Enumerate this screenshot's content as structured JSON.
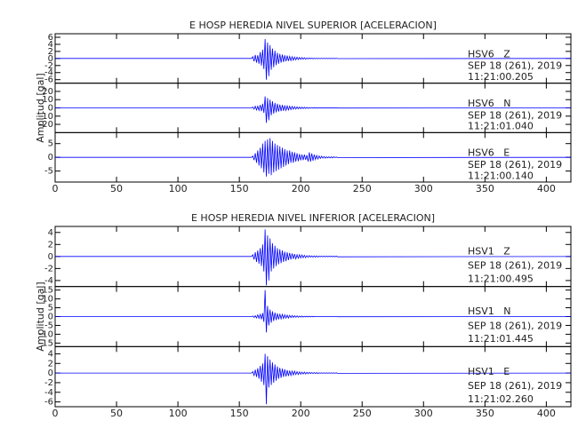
{
  "chart_data": [
    {
      "type": "line",
      "title": "E HOSP HEREDIA NIVEL SUPERIOR [ACELERACION]",
      "ylabel": "Amplitud [gal]",
      "xlim": [
        0,
        420
      ],
      "xticks": [
        0,
        50,
        100,
        150,
        200,
        250,
        300,
        350,
        400
      ],
      "x": [
        0,
        160,
        161,
        162,
        163,
        164,
        165,
        166,
        167,
        168,
        169,
        170,
        171,
        172,
        173,
        174,
        175,
        176,
        177,
        178,
        179,
        180,
        181,
        182,
        183,
        184,
        185,
        186,
        187,
        188,
        189,
        190,
        191,
        192,
        193,
        194,
        195,
        196,
        197,
        198,
        199,
        200,
        201,
        202,
        203,
        204,
        205,
        206,
        207,
        208,
        209,
        210,
        211,
        212,
        213,
        214,
        215,
        216,
        217,
        218,
        219,
        220,
        221,
        222,
        223,
        224,
        225,
        226,
        227,
        228,
        229,
        230,
        420
      ],
      "series": [
        {
          "name": "HSV6   Z",
          "date": "SEP 18 (261), 2019",
          "time": "11:21:00.205",
          "color": "#0000ff",
          "ylim": [
            -7,
            7
          ],
          "yticks": [
            6,
            4,
            2,
            0,
            -2,
            -4,
            -6
          ],
          "values": [
            0,
            0,
            0.5,
            -0.8,
            1,
            -1.2,
            0.9,
            -1.5,
            1.8,
            -2,
            2.5,
            -3,
            5.5,
            -6,
            4.5,
            -5,
            3.8,
            -3.2,
            2.8,
            -2.5,
            2.2,
            -1.9,
            1.6,
            -1.5,
            1.3,
            -1.2,
            1.1,
            -1,
            0.9,
            -0.8,
            0.8,
            -0.7,
            0.6,
            -0.6,
            0.5,
            -0.5,
            0.4,
            -0.4,
            0.35,
            -0.3,
            0.3,
            -0.25,
            0.25,
            -0.2,
            0.2,
            -0.2,
            0.15,
            -0.15,
            0.15,
            -0.1,
            0.1,
            -0.1,
            0.1,
            -0.1,
            0.08,
            -0.08,
            0.05,
            -0.05,
            0.05,
            -0.05,
            0.05,
            -0.05,
            0.05,
            -0.05,
            0.05,
            -0.05,
            0.05,
            -0.05,
            0.05,
            -0.05,
            0.05,
            -0.05,
            0
          ]
        },
        {
          "name": "HSV6   N",
          "date": "SEP 18 (261), 2019",
          "time": "11:21:01.040",
          "color": "#0000ff",
          "ylim": [
            -30,
            30
          ],
          "yticks": [
            20,
            10,
            0,
            -10,
            -20
          ],
          "values": [
            0,
            0,
            1,
            -1.5,
            2,
            -2.5,
            2,
            -3,
            3.5,
            -4,
            5,
            -6,
            14,
            -18,
            12,
            -15,
            10,
            -9,
            8,
            -7,
            6,
            -5.5,
            5,
            -4.5,
            4,
            -4,
            3.5,
            -3.5,
            3,
            -3,
            2.5,
            -2.5,
            2,
            -2,
            1.8,
            -1.6,
            1.5,
            -1.4,
            1.2,
            -1.1,
            1,
            -1,
            0.9,
            -0.8,
            0.8,
            -0.7,
            0.6,
            -0.6,
            0.5,
            -0.5,
            0.4,
            -0.4,
            0.4,
            -0.3,
            0.3,
            -0.3,
            0.3,
            -0.2,
            0.2,
            -0.2,
            0.2,
            -0.2,
            0.2,
            -0.2,
            0.2,
            -0.2,
            0.2,
            -0.2,
            0.2,
            -0.2,
            0.2,
            -0.2,
            0
          ]
        },
        {
          "name": "HSV6   E",
          "date": "SEP 18 (261), 2019",
          "time": "11:21:00.140",
          "color": "#0000ff",
          "ylim": [
            -9,
            9
          ],
          "yticks": [
            5,
            0,
            -5
          ],
          "values": [
            0,
            0,
            0.5,
            -1,
            1.5,
            -2,
            2.5,
            -3,
            3.5,
            -4,
            5,
            -5.5,
            6,
            -7,
            6.5,
            -6,
            7,
            -6.5,
            6,
            -5.5,
            5,
            -5,
            4.5,
            -4.5,
            4,
            -4,
            3.5,
            -3.5,
            3,
            -3,
            2.5,
            -2.5,
            2.5,
            -2,
            2,
            -2,
            1.8,
            -1.6,
            1.5,
            -1.4,
            1.2,
            -1.1,
            1,
            -1,
            1,
            -0.9,
            0.8,
            -1.5,
            1.8,
            -1.6,
            1.4,
            -1.2,
            1,
            -0.8,
            0.7,
            -0.6,
            0.5,
            -0.4,
            0.4,
            -0.3,
            0.3,
            -0.3,
            0.2,
            -0.2,
            0.2,
            -0.2,
            0.2,
            -0.2,
            0.2,
            -0.1,
            0.1,
            -0.1,
            0
          ]
        }
      ]
    },
    {
      "type": "line",
      "title": "E HOSP HEREDIA NIVEL INFERIOR [ACELERACION]",
      "ylabel": "Amplitud [gal]",
      "xlim": [
        0,
        420
      ],
      "xticks": [
        0,
        50,
        100,
        150,
        200,
        250,
        300,
        350,
        400
      ],
      "x": [
        0,
        160,
        161,
        162,
        163,
        164,
        165,
        166,
        167,
        168,
        169,
        170,
        171,
        172,
        173,
        174,
        175,
        176,
        177,
        178,
        179,
        180,
        181,
        182,
        183,
        184,
        185,
        186,
        187,
        188,
        189,
        190,
        191,
        192,
        193,
        194,
        195,
        196,
        197,
        198,
        199,
        200,
        201,
        202,
        203,
        204,
        205,
        206,
        207,
        208,
        209,
        210,
        211,
        212,
        213,
        214,
        215,
        216,
        217,
        218,
        219,
        220,
        221,
        222,
        223,
        224,
        225,
        226,
        227,
        228,
        229,
        230,
        420
      ],
      "series": [
        {
          "name": "HSV1   Z",
          "date": "SEP 18 (261), 2019",
          "time": "11:21:00.495",
          "color": "#0000ff",
          "ylim": [
            -5,
            5
          ],
          "yticks": [
            4,
            2,
            0,
            -2,
            -4
          ],
          "values": [
            0,
            0,
            0.3,
            -0.5,
            0.7,
            -0.9,
            1,
            -1.2,
            1.4,
            -1.6,
            2,
            -2.5,
            4.5,
            -4.8,
            3.5,
            -4,
            3,
            -2.5,
            2.2,
            -2,
            1.8,
            -1.6,
            1.4,
            -1.3,
            1.2,
            -1.1,
            1,
            -0.9,
            0.8,
            -0.8,
            0.7,
            -0.6,
            0.6,
            -0.5,
            0.5,
            -0.4,
            0.4,
            -0.4,
            0.3,
            -0.3,
            0.3,
            -0.25,
            0.25,
            -0.2,
            0.2,
            -0.2,
            0.15,
            -0.15,
            0.15,
            -0.1,
            0.1,
            -0.1,
            0.1,
            -0.1,
            0.1,
            -0.1,
            0.05,
            -0.05,
            0.05,
            -0.05,
            0.05,
            -0.05,
            0.05,
            -0.05,
            0.05,
            -0.05,
            0.05,
            -0.05,
            0.05,
            -0.05,
            0.05,
            -0.05,
            0
          ]
        },
        {
          "name": "HSV1   N",
          "date": "SEP 18 (261), 2019",
          "time": "11:21:01.445",
          "color": "#0000ff",
          "ylim": [
            -17,
            17
          ],
          "yticks": [
            15,
            10,
            5,
            0,
            -5,
            -10,
            -15
          ],
          "values": [
            0,
            0,
            0.3,
            -0.5,
            0.5,
            -0.8,
            1,
            -1,
            1.2,
            -1.5,
            2,
            -3,
            15,
            -9,
            6,
            -5,
            4,
            -3.5,
            3,
            -2.5,
            2.2,
            -2,
            1.8,
            -1.6,
            1.5,
            -1.3,
            1.2,
            -1.1,
            1,
            -0.9,
            0.8,
            -0.8,
            0.7,
            -0.6,
            0.6,
            -0.5,
            0.5,
            -0.4,
            0.4,
            -0.4,
            0.3,
            -0.3,
            0.3,
            -0.3,
            0.2,
            -0.2,
            0.2,
            -0.2,
            0.2,
            -0.2,
            0.15,
            -0.15,
            0.15,
            -0.1,
            0.1,
            -0.1,
            0.1,
            -0.1,
            0.1,
            -0.1,
            0.1,
            -0.1,
            0.1,
            -0.1,
            0.1,
            -0.1,
            0.1,
            -0.1,
            0.1,
            -0.1,
            0.1,
            -0.1,
            0
          ]
        },
        {
          "name": "HSV1   E",
          "date": "SEP 18 (261), 2019",
          "time": "11:21:02.260",
          "color": "#0000ff",
          "ylim": [
            -7,
            5.5
          ],
          "yticks": [
            4,
            2,
            0,
            -2,
            -4,
            -6
          ],
          "values": [
            0,
            0,
            0.3,
            -0.5,
            0.7,
            -0.8,
            1,
            -1.2,
            1.5,
            -1.8,
            2,
            -2.5,
            4,
            -6.5,
            3.5,
            -3,
            2.8,
            -2.5,
            2.2,
            -2,
            1.8,
            -1.6,
            1.4,
            -1.2,
            1.1,
            -1,
            0.9,
            -0.8,
            0.8,
            -0.7,
            0.6,
            -0.6,
            0.5,
            -0.5,
            0.4,
            -0.4,
            0.4,
            -0.3,
            0.3,
            -0.3,
            0.25,
            -0.25,
            0.2,
            -0.2,
            0.2,
            -0.2,
            0.15,
            -0.15,
            0.15,
            -0.1,
            0.1,
            -0.1,
            0.1,
            -0.1,
            0.1,
            -0.1,
            0.05,
            -0.05,
            0.05,
            -0.05,
            0.05,
            -0.05,
            0.05,
            -0.05,
            0.05,
            -0.05,
            0.05,
            -0.05,
            0.05,
            -0.05,
            0.05,
            -0.05,
            0
          ]
        }
      ]
    }
  ]
}
